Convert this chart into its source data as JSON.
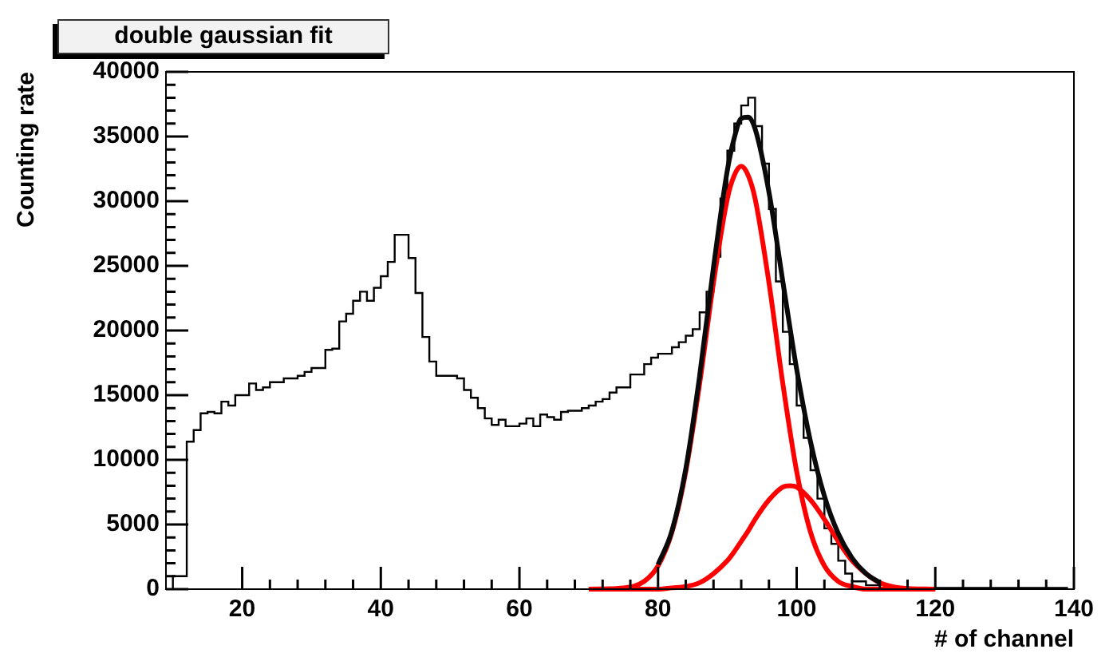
{
  "chart_data": {
    "type": "histogram",
    "title": "double gaussian fit",
    "xlabel": "# of channel",
    "ylabel": "Counting rate",
    "xlim": [
      9,
      140
    ],
    "xticks": [
      20,
      40,
      60,
      80,
      100,
      120,
      140
    ],
    "ylim": [
      0,
      40000
    ],
    "yticks": [
      0,
      5000,
      10000,
      15000,
      20000,
      25000,
      30000,
      35000,
      40000
    ],
    "legend": false,
    "grid": false,
    "series": [
      {
        "type": "histogram",
        "color": "#000000",
        "bins": [
          10,
          11,
          12,
          13,
          14,
          15,
          16,
          17,
          18,
          19,
          20,
          21,
          22,
          23,
          24,
          25,
          26,
          27,
          28,
          29,
          30,
          31,
          32,
          33,
          34,
          35,
          36,
          37,
          38,
          39,
          40,
          41,
          42,
          43,
          44,
          45,
          46,
          47,
          48,
          49,
          50,
          51,
          52,
          53,
          54,
          55,
          56,
          57,
          58,
          59,
          60,
          61,
          62,
          63,
          64,
          65,
          66,
          67,
          68,
          69,
          70,
          71,
          72,
          73,
          74,
          75,
          76,
          77,
          78,
          79,
          80,
          81,
          82,
          83,
          84,
          85,
          86,
          87,
          88,
          89,
          90,
          91,
          92,
          93,
          94,
          95,
          96,
          97,
          98,
          99,
          100,
          101,
          102,
          103,
          104,
          105,
          106,
          107,
          108,
          109,
          110,
          111,
          112,
          113,
          114,
          115,
          116,
          117,
          118,
          119,
          120,
          121,
          122,
          123,
          124,
          125,
          126,
          127,
          128,
          129,
          130,
          131,
          132,
          133,
          134,
          135,
          136,
          137,
          138,
          139
        ],
        "values": [
          1000,
          1000,
          11400,
          12300,
          13600,
          13700,
          13600,
          14500,
          14200,
          15000,
          15000,
          15900,
          15400,
          15600,
          16000,
          16000,
          16300,
          16300,
          16500,
          16800,
          17100,
          17100,
          18500,
          18600,
          20700,
          21300,
          22300,
          23000,
          22300,
          23300,
          24200,
          25300,
          27400,
          27400,
          25600,
          22900,
          19500,
          17600,
          16500,
          16500,
          16500,
          16300,
          15400,
          14800,
          14000,
          13200,
          12700,
          13100,
          12600,
          12600,
          12800,
          13200,
          12600,
          13500,
          13300,
          13100,
          13700,
          13800,
          13800,
          14000,
          14200,
          14500,
          14700,
          15200,
          15600,
          15600,
          16600,
          16600,
          17400,
          17900,
          18200,
          18200,
          18700,
          19100,
          19600,
          20100,
          21400,
          23000,
          25700,
          30200,
          33900,
          36000,
          37400,
          38000,
          35800,
          32900,
          29400,
          23800,
          19900,
          17400,
          14200,
          11700,
          9200,
          7000,
          4700,
          3500,
          2200,
          1200,
          600,
          600,
          300,
          300,
          100,
          100,
          100,
          100,
          100,
          100,
          100,
          100,
          100,
          100,
          100,
          100,
          100,
          100,
          100,
          100,
          100,
          100,
          100,
          100,
          100,
          100,
          100,
          100,
          100,
          100,
          100
        ]
      },
      {
        "type": "line",
        "color": "#ff0000",
        "x": [
          70,
          75,
          78,
          80,
          82,
          84,
          86,
          88,
          90,
          91,
          92,
          93,
          94,
          96,
          98,
          100,
          102,
          104,
          106,
          108,
          110,
          112,
          115,
          120
        ],
        "values": [
          0,
          100,
          600,
          1800,
          4400,
          9100,
          15900,
          23700,
          30200,
          32000,
          32700,
          32000,
          30200,
          23700,
          15900,
          9100,
          4400,
          1800,
          600,
          200,
          0,
          0,
          0,
          0
        ]
      },
      {
        "type": "line",
        "color": "#ff0000",
        "x": [
          70,
          75,
          78,
          80,
          82,
          84,
          86,
          88,
          90,
          91,
          92,
          93,
          94,
          96,
          98,
          99,
          100,
          102,
          104,
          106,
          108,
          110,
          112,
          115,
          120
        ],
        "values": [
          0,
          0,
          0,
          0,
          100,
          200,
          500,
          1200,
          2200,
          2900,
          3700,
          4500,
          5400,
          6900,
          7900,
          8000,
          7900,
          6900,
          5400,
          3700,
          2200,
          1200,
          500,
          100,
          0
        ]
      },
      {
        "type": "line",
        "color": "#0a0a0a",
        "x": [
          80,
          82,
          84,
          86,
          88,
          90,
          91,
          92,
          93,
          94,
          96,
          98,
          100,
          102,
          104,
          106,
          108,
          110,
          112
        ],
        "values": [
          1900,
          4500,
          9300,
          16500,
          24900,
          32400,
          34900,
          36400,
          36500,
          35600,
          30700,
          23800,
          17000,
          11400,
          7200,
          4300,
          2400,
          1200,
          500
        ]
      }
    ]
  }
}
